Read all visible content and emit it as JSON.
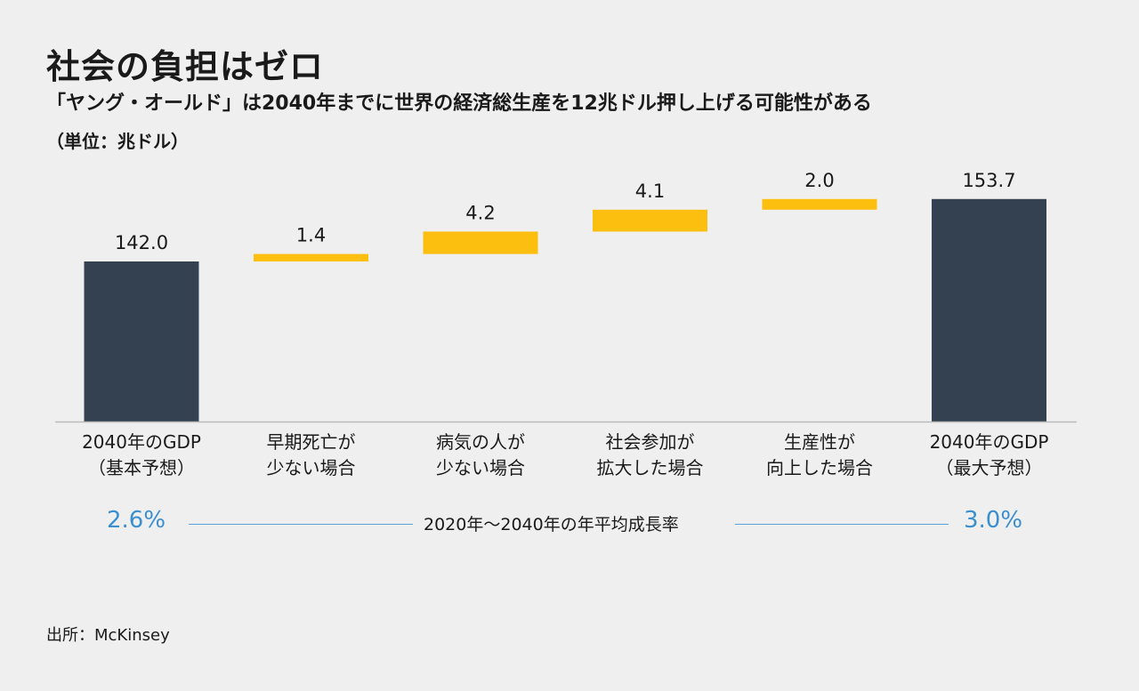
{
  "header": {
    "title": "社会の負担はゼロ",
    "subtitle": "「ヤング・オールド」は2040年までに世界の経済総生産を12兆ドル押し上げる可能性がある",
    "unit": "（単位：兆ドル）"
  },
  "chart_data": {
    "type": "bar",
    "subtype": "waterfall",
    "categories": [
      [
        "2040年のGDP",
        "（基本予想）"
      ],
      [
        "早期死亡が",
        "少ない場合"
      ],
      [
        "病気の人が",
        "少ない場合"
      ],
      [
        "社会参加が",
        "拡大した場合"
      ],
      [
        "生産性が",
        "向上した場合"
      ],
      [
        "2040年のGDP",
        "（最大予想）"
      ]
    ],
    "values": [
      142.0,
      1.4,
      4.2,
      4.1,
      2.0,
      153.7
    ],
    "value_labels": [
      "142.0",
      "1.4",
      "4.2",
      "4.1",
      "2.0",
      "153.7"
    ],
    "bar_kinds": [
      "total",
      "increment",
      "increment",
      "increment",
      "increment",
      "total"
    ],
    "ylim": [
      112,
      160
    ],
    "grid": false,
    "colors": {
      "total": "#334150",
      "increment": "#fdbf0f",
      "axis": "#bbbbbb"
    }
  },
  "growth": {
    "left_value": "2.6%",
    "label": "2020年〜2040年の年平均成長率",
    "right_value": "3.0%",
    "color": "#3a8fd0"
  },
  "footer": {
    "source": "出所：McKinsey"
  }
}
